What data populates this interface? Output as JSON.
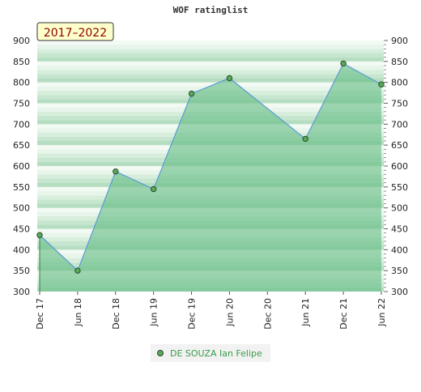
{
  "chart_data": {
    "type": "area",
    "title": "WOF ratinglist",
    "period_badge": "2017–2022",
    "x_labels": [
      "Dec 17",
      "Jun 18",
      "Dec 18",
      "Jun 19",
      "Dec 19",
      "Jun 20",
      "Dec 20",
      "Jun 21",
      "Dec 21",
      "Jun 22"
    ],
    "y_ticks": [
      300,
      350,
      400,
      450,
      500,
      550,
      600,
      650,
      700,
      750,
      800,
      850,
      900
    ],
    "ylim": [
      300,
      900
    ],
    "grid": true,
    "series": [
      {
        "name": "DE SOUZA Ian Felipe",
        "points": [
          {
            "x": "Dec 17",
            "y": 435
          },
          {
            "x": "Jun 18",
            "y": 350
          },
          {
            "x": "Dec 18",
            "y": 587
          },
          {
            "x": "Jun 19",
            "y": 545
          },
          {
            "x": "Dec 19",
            "y": 773
          },
          {
            "x": "Jun 20",
            "y": 810
          },
          {
            "x": "Jun 21",
            "y": 665
          },
          {
            "x": "Dec 21",
            "y": 845
          },
          {
            "x": "Jun 22",
            "y": 795
          }
        ]
      }
    ],
    "legend_position": "bottom-center",
    "colors": {
      "line": "#5b9bd5",
      "marker_fill": "#5aa85a",
      "marker_stroke": "#2c4a2c",
      "fill": "#6cc08a",
      "band_dark": "#b8e0c4",
      "band_light": "#eef8f0",
      "badge_bg": "#ffffcc",
      "badge_text": "#8b0000",
      "legend_text": "#3a9a4a"
    }
  }
}
